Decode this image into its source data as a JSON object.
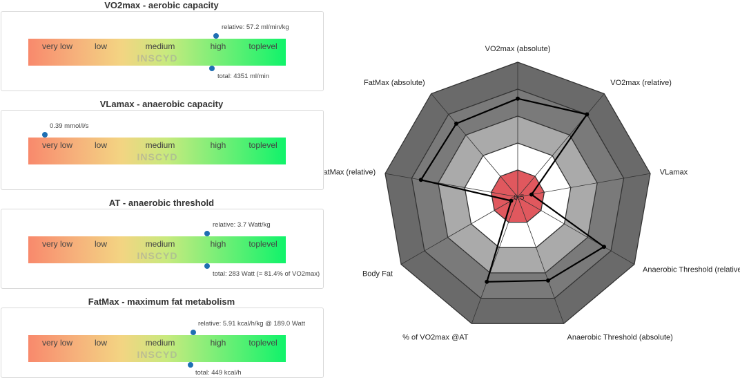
{
  "scale_labels": [
    "very low",
    "low",
    "medium",
    "high",
    "toplevel"
  ],
  "brand": "INSCYD",
  "panels": [
    {
      "title": "VO2max - aerobic capacity",
      "top_note": "relative: 57.2 ml/min/kg",
      "bottom_note": "total: 4351 ml/min",
      "top_level": 0.73,
      "bottom_level": 0.715
    },
    {
      "title": "VLamax - anaerobic capacity",
      "top_note": "0.39 mmol/l/s",
      "bottom_note": "",
      "top_level": 0.065,
      "bottom_level": null
    },
    {
      "title": "AT - anaerobic threshold",
      "top_note": "relative: 3.7 Watt/kg",
      "bottom_note": "total: 283 Watt (= 81.4% of VO2max)",
      "top_level": 0.695,
      "bottom_level": 0.695
    },
    {
      "title": "FatMax - maximum fat metabolism",
      "top_note": "relative: 5.91 kcal/h/kg @ 189.0 Watt",
      "bottom_note": "total: 449 kcal/h",
      "top_level": 0.64,
      "bottom_level": 0.63
    }
  ],
  "chart_data": {
    "type": "radar",
    "axes": [
      "VO2max (absolute)",
      "VO2max (relative)",
      "VLamax",
      "Anaerobic Threshold (relative)",
      "Anaerobic Threshold (absolute)",
      "% of VO2max @AT",
      "Body Fat",
      "FatMax (relative)",
      "FatMax (absolute)"
    ],
    "rings": 5,
    "ring_colors": [
      "#e0585e",
      "#ffffff",
      "#aaaaaa",
      "#7a7a7a",
      "#6a6a6a"
    ],
    "values": [
      3.65,
      4.0,
      0.52,
      3.7,
      3.3,
      3.35,
      0.28,
      3.65,
      3.55
    ],
    "center_label": "-0.5"
  }
}
